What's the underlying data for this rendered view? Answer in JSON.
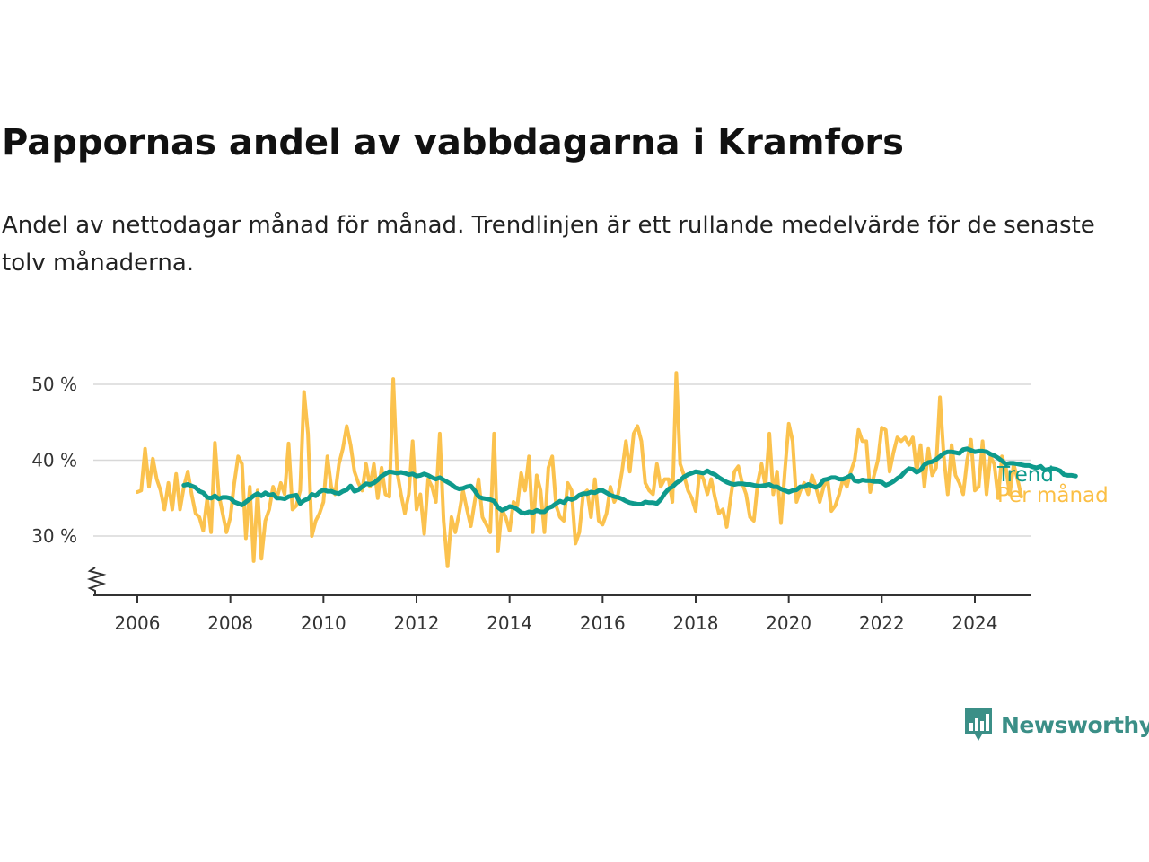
{
  "title": "Pappornas andel av vabbdagarna i Kramfors",
  "subtitle": "Andel av nettodagar månad för månad. Trendlinjen är ett rullande medelvärde för de senaste tolv månaderna.",
  "brand": {
    "name": "Newsworthy",
    "color": "#3b8f87",
    "icon": "newsworthy-bar-chart-icon"
  },
  "chart_data": {
    "type": "line",
    "x_axis": {
      "min": 2005.6,
      "max": 2025.3,
      "ticks": [
        2006,
        2008,
        2010,
        2012,
        2014,
        2016,
        2018,
        2020,
        2022,
        2024
      ]
    },
    "y_axis": {
      "min": 22,
      "max": 52,
      "ticks": [
        30,
        40,
        50
      ],
      "tick_labels": [
        "30 %",
        "40 %",
        "50 %"
      ],
      "broken_axis": true
    },
    "grid": true,
    "colors": {
      "trend": "#0e9a8c",
      "monthly": "#fbbf45",
      "grid": "#d8d8d8",
      "axis": "#333333"
    },
    "series": [
      {
        "name": "Per månad",
        "start": 2006.0,
        "step_months": 1,
        "values": [
          35.8,
          36,
          41.5,
          36.5,
          40.2,
          37.5,
          36,
          33.5,
          37,
          33.5,
          38.2,
          33.5,
          36.5,
          38.5,
          35.5,
          33,
          32.5,
          30.7,
          35,
          30.5,
          42.3,
          35.5,
          33,
          30.5,
          32.5,
          37,
          40.5,
          39.5,
          29.7,
          36.5,
          26.7,
          36,
          27,
          32,
          33.5,
          36.5,
          35,
          37,
          35.5,
          42.2,
          33.5,
          34,
          36,
          49,
          43.5,
          30,
          32,
          33,
          34.5,
          40.5,
          36.5,
          35.5,
          39.5,
          41.5,
          44.5,
          42,
          38.5,
          37,
          36,
          39.5,
          36.5,
          39.5,
          35,
          39,
          35.5,
          35.2,
          50.7,
          38.5,
          35.5,
          33,
          35.5,
          42.5,
          33.5,
          35.5,
          30.3,
          37.5,
          36.5,
          34.5,
          43.5,
          32,
          26,
          32.5,
          30.5,
          33,
          36,
          33.5,
          31.3,
          34.5,
          37.5,
          32.5,
          31.5,
          30.5,
          43.5,
          28,
          33.5,
          32.5,
          30.7,
          34.5,
          34,
          38.3,
          36,
          40.5,
          30.5,
          38,
          36,
          30.5,
          39,
          40.5,
          34,
          32.5,
          32,
          37,
          36,
          29,
          30.5,
          35.5,
          36,
          32.5,
          37.5,
          32,
          31.5,
          33,
          36.5,
          34.5,
          35.5,
          38.5,
          42.5,
          38.5,
          43.5,
          44.5,
          42.5,
          37,
          36,
          35.5,
          39.5,
          36.5,
          37.5,
          37.5,
          34.5,
          51.5,
          39.5,
          38,
          36,
          35,
          33.3,
          38.5,
          37.5,
          35.5,
          37.5,
          35,
          33,
          33.5,
          31.2,
          35,
          38.5,
          39.2,
          37,
          35.5,
          32.5,
          32,
          37,
          39.5,
          36.5,
          43.5,
          35.5,
          38.5,
          31.7,
          38.5,
          44.8,
          42.5,
          34.5,
          36,
          37,
          35.5,
          38,
          36.5,
          34.5,
          36.5,
          37.5,
          33.3,
          34,
          35.5,
          37.5,
          36.5,
          38.5,
          40,
          44,
          42.5,
          42.5,
          35.8,
          38,
          40,
          44.3,
          44,
          38.5,
          41,
          43,
          42.5,
          43,
          42,
          43,
          38.5,
          42,
          36.5,
          41.5,
          38,
          39,
          48.3,
          40.5,
          35.5,
          42,
          38,
          37,
          35.5,
          40,
          42.7,
          36,
          36.5,
          42.5,
          35.5,
          40.5,
          39.5,
          35,
          40.5,
          39,
          35.5,
          39.5,
          37.5,
          35.2
        ]
      },
      {
        "name": "Trend",
        "start": 2007.0,
        "step_months": 1,
        "values": [
          36.7,
          36.8,
          36.6,
          36.4,
          35.9,
          35.7,
          35.1,
          35,
          35.3,
          34.9,
          35.1,
          35.1,
          35,
          34.5,
          34.3,
          34.1,
          34.5,
          34.9,
          35.3,
          35.6,
          35.3,
          35.7,
          35.4,
          35.5,
          35,
          35,
          34.9,
          35.2,
          35.3,
          35.4,
          34.3,
          34.7,
          34.9,
          35.5,
          35.3,
          35.8,
          36.1,
          35.9,
          35.9,
          35.7,
          35.6,
          35.9,
          36.1,
          36.6,
          35.9,
          36.1,
          36.5,
          36.9,
          36.8,
          37,
          37.4,
          37.9,
          38.2,
          38.5,
          38.4,
          38.3,
          38.4,
          38.3,
          38.1,
          38.2,
          37.9,
          38,
          38.2,
          38,
          37.7,
          37.5,
          37.7,
          37.4,
          37.1,
          36.8,
          36.4,
          36.2,
          36.3,
          36.5,
          36.6,
          36,
          35.2,
          35,
          34.9,
          34.8,
          34.6,
          33.8,
          33.4,
          33.6,
          33.9,
          33.8,
          33.5,
          33.1,
          33,
          33.2,
          33.1,
          33.4,
          33.2,
          33.2,
          33.7,
          33.9,
          34.3,
          34.6,
          34.4,
          35,
          34.8,
          35,
          35.4,
          35.6,
          35.6,
          35.8,
          35.7,
          36,
          36,
          35.7,
          35.4,
          35.2,
          35.1,
          34.9,
          34.6,
          34.4,
          34.3,
          34.2,
          34.2,
          34.5,
          34.4,
          34.4,
          34.3,
          34.8,
          35.6,
          36.2,
          36.5,
          37,
          37.3,
          37.8,
          38.1,
          38.3,
          38.5,
          38.4,
          38.3,
          38.6,
          38.3,
          38.1,
          37.7,
          37.4,
          37.1,
          36.9,
          36.8,
          36.9,
          36.9,
          36.8,
          36.8,
          36.7,
          36.6,
          36.6,
          36.7,
          36.8,
          36.5,
          36.5,
          36.2,
          36,
          35.8,
          36,
          36.1,
          36.5,
          36.5,
          36.8,
          36.6,
          36.4,
          36.7,
          37.4,
          37.5,
          37.7,
          37.7,
          37.5,
          37.5,
          37.7,
          38,
          37.3,
          37.2,
          37.4,
          37.3,
          37.3,
          37.2,
          37.2,
          37.1,
          36.7,
          36.9,
          37.2,
          37.6,
          37.9,
          38.5,
          38.9,
          38.8,
          38.4,
          38.7,
          39.4,
          39.7,
          39.8,
          40.1,
          40.5,
          40.9,
          41.1,
          41.1,
          41,
          40.9,
          41.4,
          41.5,
          41.3,
          41.1,
          41.2,
          41.2,
          41.1,
          40.8,
          40.6,
          40.3,
          39.9,
          39.5,
          39.6,
          39.6,
          39.5,
          39.4,
          39.3,
          39.3,
          39.1,
          39,
          39.2,
          38.7,
          38.8,
          38.9,
          38.8,
          38.6,
          38.1,
          38,
          38,
          37.9
        ]
      }
    ],
    "series_labels": true
  }
}
